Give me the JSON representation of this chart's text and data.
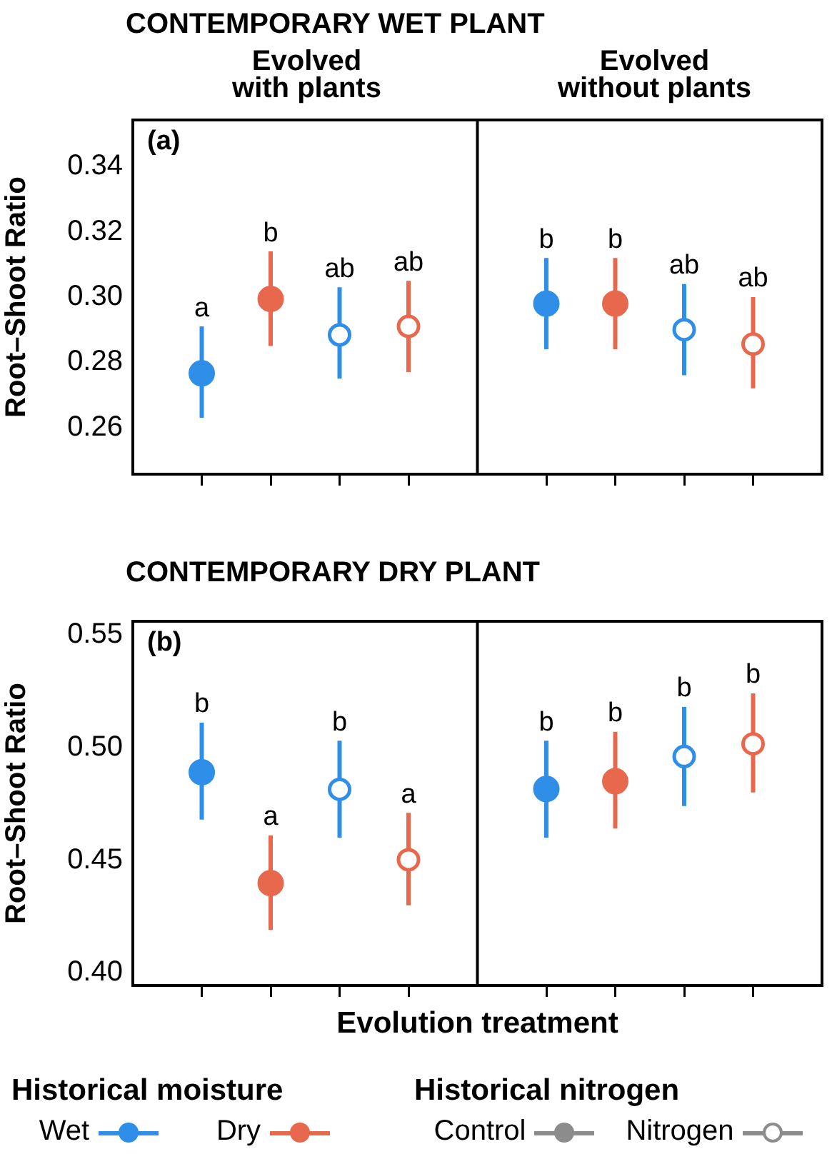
{
  "chart_data": [
    {
      "type": "scatter",
      "title": "CONTEMPORARY WET PLANT",
      "ylabel": "Root–Shoot Ratio",
      "annotations": [
        "(a)"
      ],
      "categories": [
        "Evolved\nwith plants",
        "Evolved\nwithout plants"
      ],
      "marker": "circle",
      "ylim": [
        0.2457,
        0.3543
      ],
      "yticks": [
        {
          "value": 0.26,
          "label": "0.26"
        },
        {
          "value": 0.28,
          "label": "0.28"
        },
        {
          "value": 0.3,
          "label": "0.30"
        },
        {
          "value": 0.32,
          "label": "0.32"
        },
        {
          "value": 0.34,
          "label": "0.34"
        }
      ],
      "series": [
        {
          "color": "#2e8ee8",
          "values": [
            0.2766,
            0.298
          ],
          "errors": [
            [
              0.263,
              0.291
            ],
            [
              0.284,
              0.312
            ]
          ],
          "value_labels": [
            "a",
            "b"
          ]
        },
        {
          "color": "#e8684d",
          "values": [
            0.2994,
            0.298
          ],
          "errors": [
            [
              0.285,
              0.314
            ],
            [
              0.284,
              0.312
            ]
          ],
          "value_labels": [
            "b",
            "b"
          ]
        },
        {
          "color": "#2e8ee8",
          "values": [
            0.2884,
            0.29
          ],
          "errors": [
            [
              0.275,
              0.303
            ],
            [
              0.276,
              0.304
            ]
          ],
          "value_labels": [
            "ab",
            "ab"
          ]
        },
        {
          "color": "#e8684d",
          "values": [
            0.291,
            0.2856
          ],
          "errors": [
            [
              0.277,
              0.305
            ],
            [
              0.272,
              0.3
            ]
          ],
          "value_labels": [
            "ab",
            "ab"
          ]
        }
      ]
    },
    {
      "type": "scatter",
      "title": "CONTEMPORARY DRY PLANT",
      "ylabel": "Root–Shoot Ratio",
      "xlabel": "Evolution treatment",
      "annotations": [
        "(b)"
      ],
      "categories": [
        null,
        null
      ],
      "marker": "circle",
      "tick_labels": "y",
      "legend": "bottom",
      "legend_title": "Historical moisture",
      "ylim": [
        0.3944,
        0.556
      ],
      "yticks": [
        {
          "value": 0.4,
          "label": "0.40"
        },
        {
          "value": 0.45,
          "label": "0.45"
        },
        {
          "value": 0.5,
          "label": "0.50"
        },
        {
          "value": 0.55,
          "label": "0.55"
        }
      ],
      "series": [
        {
          "name": "Wet",
          "color": "#2e8ee8",
          "values": [
            0.489,
            0.4816
          ],
          "errors": [
            [
              0.468,
              0.511
            ],
            [
              0.46,
              0.503
            ]
          ],
          "value_labels": [
            "b",
            "b"
          ]
        },
        {
          "name": "Dry",
          "color": "#e8684d",
          "values": [
            0.4398,
            0.485
          ],
          "errors": [
            [
              0.419,
              0.461
            ],
            [
              0.464,
              0.507
            ]
          ],
          "value_labels": [
            "a",
            "b"
          ]
        },
        {
          "color": "#2e8ee8",
          "values": [
            0.4814,
            0.496
          ],
          "errors": [
            [
              0.46,
              0.503
            ],
            [
              0.474,
              0.518
            ]
          ],
          "value_labels": [
            "b",
            "b"
          ]
        },
        {
          "color": "#e8684d",
          "values": [
            0.4502,
            0.5016
          ],
          "errors": [
            [
              0.43,
              0.471
            ],
            [
              0.48,
              0.524
            ]
          ],
          "value_labels": [
            "a",
            "b"
          ]
        }
      ]
    },
    {
      "type": "other",
      "title": "Historical nitrogen",
      "categories": [
        "Control",
        "Nitrogen"
      ],
      "colors": [
        "#8c8c8c",
        "#8c8c8c"
      ]
    }
  ]
}
